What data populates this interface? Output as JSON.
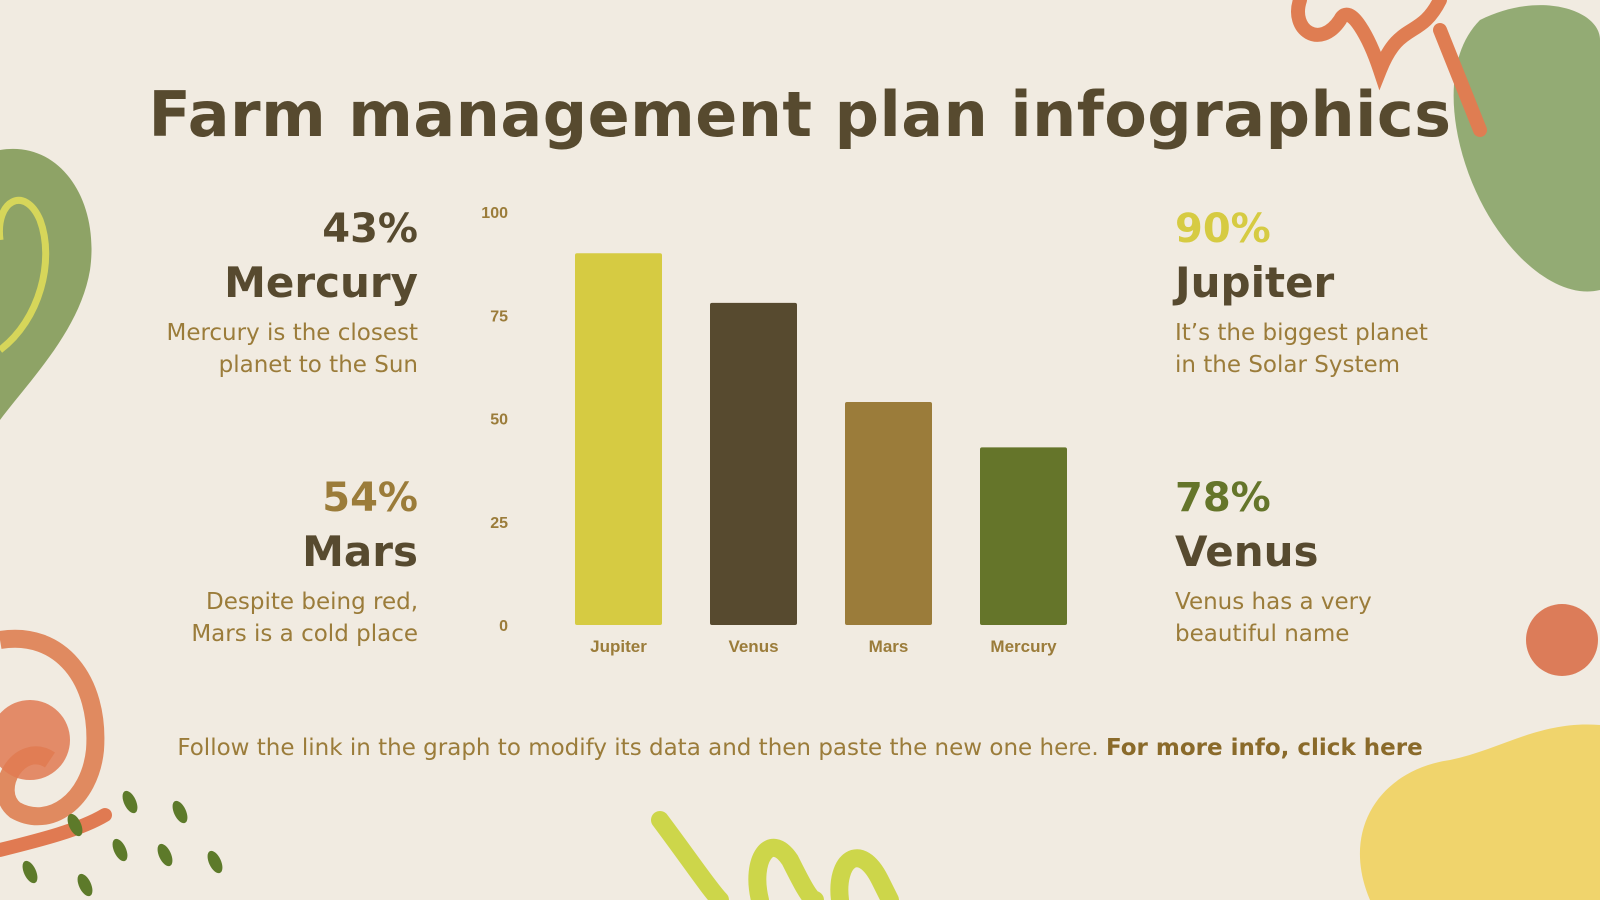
{
  "title": "Farm management plan infographics",
  "stats": [
    {
      "percent": "43%",
      "name": "Mercury",
      "desc_line1": "Mercury is the closest",
      "desc_line2": "planet to the Sun",
      "color": "#574a2f"
    },
    {
      "percent": "54%",
      "name": "Mars",
      "desc_line1": "Despite being red,",
      "desc_line2": "Mars is a cold place",
      "color": "#9b7c3a"
    },
    {
      "percent": "90%",
      "name": "Jupiter",
      "desc_line1": "It’s the biggest planet",
      "desc_line2": "in the Solar System",
      "color": "#d6cb42"
    },
    {
      "percent": "78%",
      "name": "Venus",
      "desc_line1": "Venus has a very",
      "desc_line2": "beautiful name",
      "color": "#65752a"
    }
  ],
  "footer": {
    "text": "Follow the link in the graph to modify its data and then paste the new one here. ",
    "link": "For more info, click here"
  },
  "chart_data": {
    "type": "bar",
    "categories": [
      "Jupiter",
      "Venus",
      "Mars",
      "Mercury"
    ],
    "values": [
      90,
      78,
      54,
      43
    ],
    "colors": [
      "#d6cb42",
      "#574a2f",
      "#9b7c3a",
      "#65752a"
    ],
    "yticks": [
      0,
      25,
      50,
      75,
      100
    ],
    "ylim": [
      0,
      100
    ],
    "grid": false,
    "title": "",
    "xlabel": "",
    "ylabel": ""
  }
}
